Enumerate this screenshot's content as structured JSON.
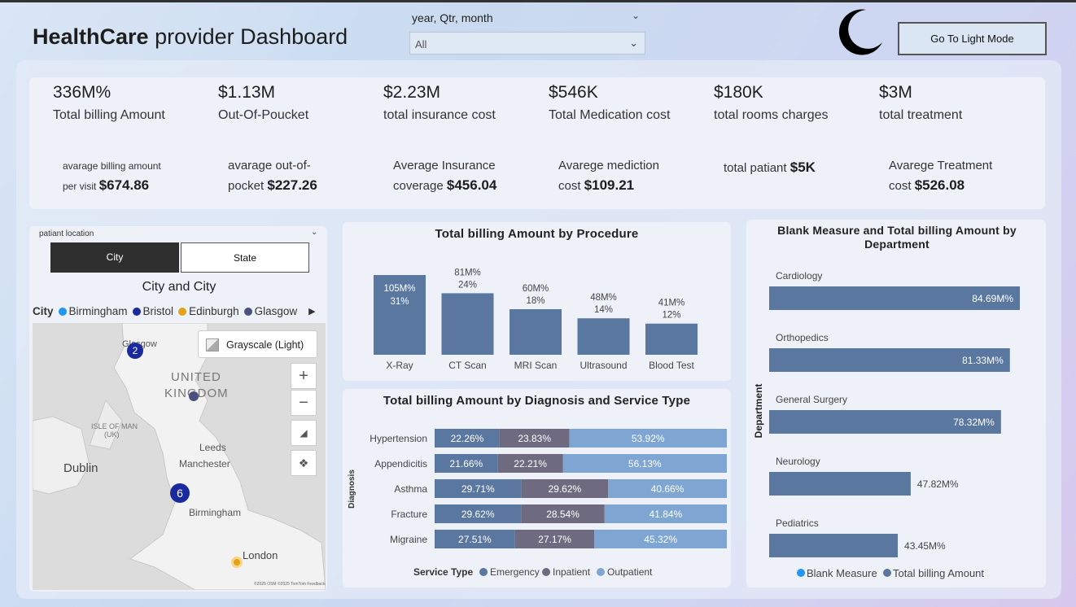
{
  "header": {
    "title_bold": "HealthCare",
    "title_rest": " provider Dashboard",
    "slicer_label": "year, Qtr, month",
    "slicer_value": "All",
    "mode_button": "Go To Light Mode"
  },
  "kpis": [
    {
      "value": "336M%",
      "label": "Total billing Amount"
    },
    {
      "value": "$1.13M",
      "label": "Out-Of-Poucket"
    },
    {
      "value": "$2.23M",
      "label": "total insurance cost"
    },
    {
      "value": "$546K",
      "label": "Total Medication cost"
    },
    {
      "value": "$180K",
      "label": "total rooms charges"
    },
    {
      "value": "$3M",
      "label": "total treatment"
    }
  ],
  "kpis_secondary": [
    {
      "line1": "avarage billing amount",
      "line2": "per visit",
      "value": "$674.86"
    },
    {
      "line1": "avarage out-of-",
      "line2": "pocket",
      "value": "$227.26"
    },
    {
      "line1": "Average Insurance",
      "line2": "coverage",
      "value": "$456.04"
    },
    {
      "line1": "Avarege mediction",
      "line2": "cost",
      "value": "$109.21"
    },
    {
      "line1": "total patiant",
      "value": "$5K"
    },
    {
      "line1": "Avarege Treatment",
      "line2": "cost",
      "value": "$526.08"
    }
  ],
  "map": {
    "slicer_label": "patiant location",
    "tab_city": "City",
    "tab_state": "State",
    "title": "City and City",
    "legend_title": "City",
    "legend": [
      {
        "name": "Birmingham",
        "color": "#2196f3"
      },
      {
        "name": "Bristol",
        "color": "#1a2a9c"
      },
      {
        "name": "Edinburgh",
        "color": "#e3a21a"
      },
      {
        "name": "Glasgow",
        "color": "#4a5080"
      }
    ],
    "style_button": "Grayscale (Light)",
    "labels": {
      "glasgow": "Glasgow",
      "united": "UNITED",
      "kingdom": "KINGDOM",
      "isle": "ISLE OF MAN",
      "uk": "(UK)",
      "leeds": "Leeds",
      "dublin": "Dublin",
      "manchester": "Manchester",
      "birmingham": "Birmingham",
      "london": "London"
    },
    "markers": [
      {
        "label": "2",
        "color": "#1a2a9c"
      },
      {
        "label": "6",
        "color": "#1a2a9c"
      }
    ],
    "attribution": "©2025 OSM ©2025 TomTom Feedback"
  },
  "chart_data": [
    {
      "type": "bar",
      "title": "Total billing Amount by Procedure",
      "categories": [
        "X-Ray",
        "CT Scan",
        "MRI Scan",
        "Ultrasound",
        "Blood Test"
      ],
      "values": [
        105,
        81,
        60,
        48,
        41
      ],
      "value_labels": [
        "105M%",
        "81M%",
        "60M%",
        "48M%",
        "41M%"
      ],
      "percent_labels": [
        "31%",
        "24%",
        "18%",
        "14%",
        "12%"
      ],
      "color": "#5a77a0"
    },
    {
      "type": "bar",
      "orientation": "horizontal-stacked-100",
      "title": "Total billing Amount by Diagnosis and Service Type",
      "ylabel": "Diagnosis",
      "categories": [
        "Hypertension",
        "Appendicitis",
        "Asthma",
        "Fracture",
        "Migraine"
      ],
      "legend_title": "Service Type",
      "series": [
        {
          "name": "Emergency",
          "color": "#5a77a0",
          "values": [
            22.26,
            21.66,
            29.71,
            29.62,
            27.51
          ],
          "labels": [
            "22.26%",
            "21.66%",
            "29.71%",
            "29.62%",
            "27.51%"
          ]
        },
        {
          "name": "Inpatient",
          "color": "#6e6b80",
          "values": [
            23.83,
            22.21,
            29.62,
            28.54,
            27.17
          ],
          "labels": [
            "23.83%",
            "22.21%",
            "29.62%",
            "28.54%",
            "27.17%"
          ]
        },
        {
          "name": "Outpatient",
          "color": "#7fa6d3",
          "values": [
            53.92,
            56.13,
            40.66,
            41.84,
            45.32
          ],
          "labels": [
            "53.92%",
            "56.13%",
            "40.66%",
            "41.84%",
            "45.32%"
          ]
        }
      ]
    },
    {
      "type": "bar",
      "orientation": "horizontal",
      "title": "Blank Measure and Total billing Amount by Department",
      "ylabel": "Department",
      "categories": [
        "Cardiology",
        "Orthopedics",
        "General Surgery",
        "Neurology",
        "Pediatrics"
      ],
      "values": [
        84.69,
        81.33,
        78.32,
        47.82,
        43.45
      ],
      "value_labels": [
        "84.69M%",
        "81.33M%",
        "78.32M%",
        "47.82M%",
        "43.45M%"
      ],
      "xlim": [
        0,
        84.69
      ],
      "legend": [
        {
          "name": "Blank Measure",
          "color": "#2196f3"
        },
        {
          "name": "Total billing Amount",
          "color": "#5a77a0"
        }
      ],
      "color": "#5a77a0"
    }
  ]
}
